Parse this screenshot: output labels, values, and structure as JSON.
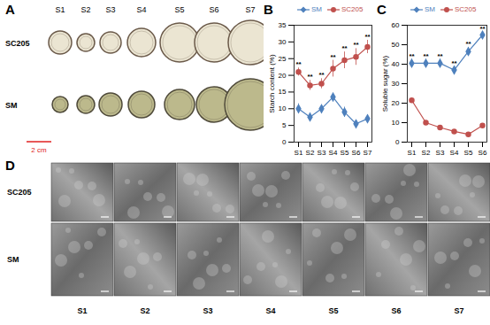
{
  "chart_data": [
    {
      "type": "line",
      "title": "B",
      "y_label": "Starch content (%)",
      "categories": [
        "S1",
        "S2",
        "S3",
        "S4",
        "S5",
        "S6",
        "S7"
      ],
      "series": [
        {
          "name": "SM",
          "color": "#4f81bd",
          "marker": "diamond",
          "values": [
            10,
            7.5,
            10,
            13.5,
            9,
            5.5,
            7
          ],
          "errors": [
            1.5,
            1.2,
            1.2,
            1.2,
            1.5,
            1,
            1.2
          ]
        },
        {
          "name": "SC205",
          "color": "#c0504d",
          "marker": "circle",
          "values": [
            21,
            17,
            17.5,
            22,
            24.5,
            25.5,
            28.5
          ],
          "errors": [
            1.2,
            1.5,
            1.5,
            2.5,
            2.5,
            2.5,
            2
          ]
        }
      ],
      "annotations": [
        {
          "x": "S1",
          "series": "SC205",
          "text": "**"
        },
        {
          "x": "S2",
          "series": "SC205",
          "text": "**"
        },
        {
          "x": "S3",
          "series": "SC205",
          "text": "**"
        },
        {
          "x": "S4",
          "series": "SC205",
          "text": "**"
        },
        {
          "x": "S5",
          "series": "SC205",
          "text": "**"
        },
        {
          "x": "S6",
          "series": "SC205",
          "text": "**"
        },
        {
          "x": "S7",
          "series": "SC205",
          "text": "**"
        }
      ],
      "ylim": [
        0,
        35
      ],
      "yticks": [
        0,
        5,
        10,
        15,
        20,
        25,
        30,
        35
      ],
      "grid": false,
      "legend": "top"
    },
    {
      "type": "line",
      "title": "C",
      "y_label": "Soluble sugar (%)",
      "categories": [
        "S1",
        "S2",
        "S3",
        "S4",
        "S5",
        "S6"
      ],
      "series": [
        {
          "name": "SM",
          "color": "#4f81bd",
          "marker": "diamond",
          "values": [
            40.5,
            40.5,
            40.5,
            37,
            46.5,
            55
          ],
          "errors": [
            2,
            2,
            2,
            1.5,
            2,
            1.5
          ]
        },
        {
          "name": "SC205",
          "color": "#c0504d",
          "marker": "circle",
          "values": [
            21.5,
            10,
            7.5,
            5.5,
            4,
            8.5
          ],
          "errors": [
            1,
            1,
            1,
            0.8,
            0.8,
            0.8
          ]
        }
      ],
      "annotations": [
        {
          "x": "S1",
          "series": "SM",
          "text": "**"
        },
        {
          "x": "S2",
          "series": "SM",
          "text": "**"
        },
        {
          "x": "S3",
          "series": "SM",
          "text": "**"
        },
        {
          "x": "S4",
          "series": "SM",
          "text": "**"
        },
        {
          "x": "S5",
          "series": "SM",
          "text": "**"
        },
        {
          "x": "S6",
          "series": "SM",
          "text": "**"
        }
      ],
      "ylim": [
        0,
        60
      ],
      "yticks": [
        0,
        10,
        20,
        30,
        40,
        50,
        60
      ],
      "grid": false,
      "legend": "top"
    }
  ],
  "panel_a": {
    "title": "A",
    "rows": [
      "SC205",
      "SM"
    ],
    "columns": [
      "S1",
      "S2",
      "S3",
      "S4",
      "S5",
      "S6",
      "S7"
    ],
    "scale_bar": "2 cm"
  },
  "panel_d": {
    "title": "D",
    "rows": [
      "SC205",
      "SM"
    ],
    "columns": [
      "S1",
      "S2",
      "S3",
      "S4",
      "S5",
      "S6",
      "S7"
    ]
  }
}
